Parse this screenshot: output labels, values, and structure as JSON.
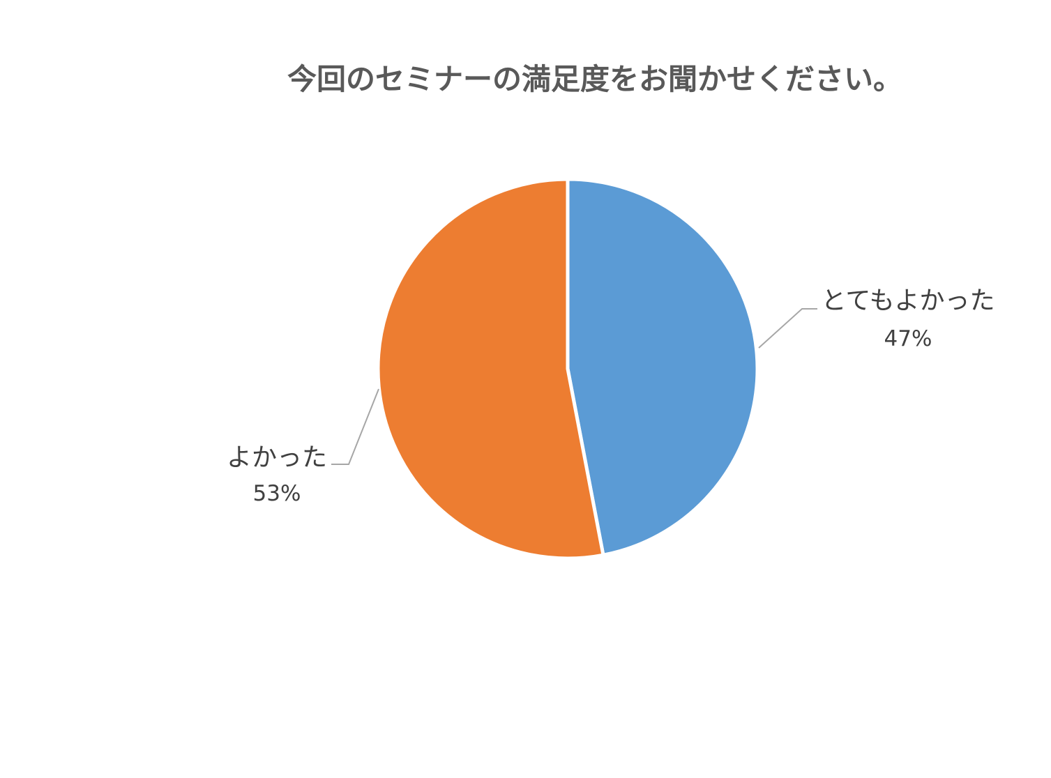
{
  "chart_data": {
    "type": "pie",
    "title": "今回のセミナーの満足度をお聞かせください。",
    "categories": [
      "とてもよかった",
      "よかった"
    ],
    "values": [
      47,
      53
    ],
    "percent_labels": [
      "47%",
      "53%"
    ],
    "colors": [
      "#5B9BD5",
      "#ED7D31"
    ],
    "legend": "none",
    "start_angle_deg": 0,
    "direction": "clockwise"
  }
}
